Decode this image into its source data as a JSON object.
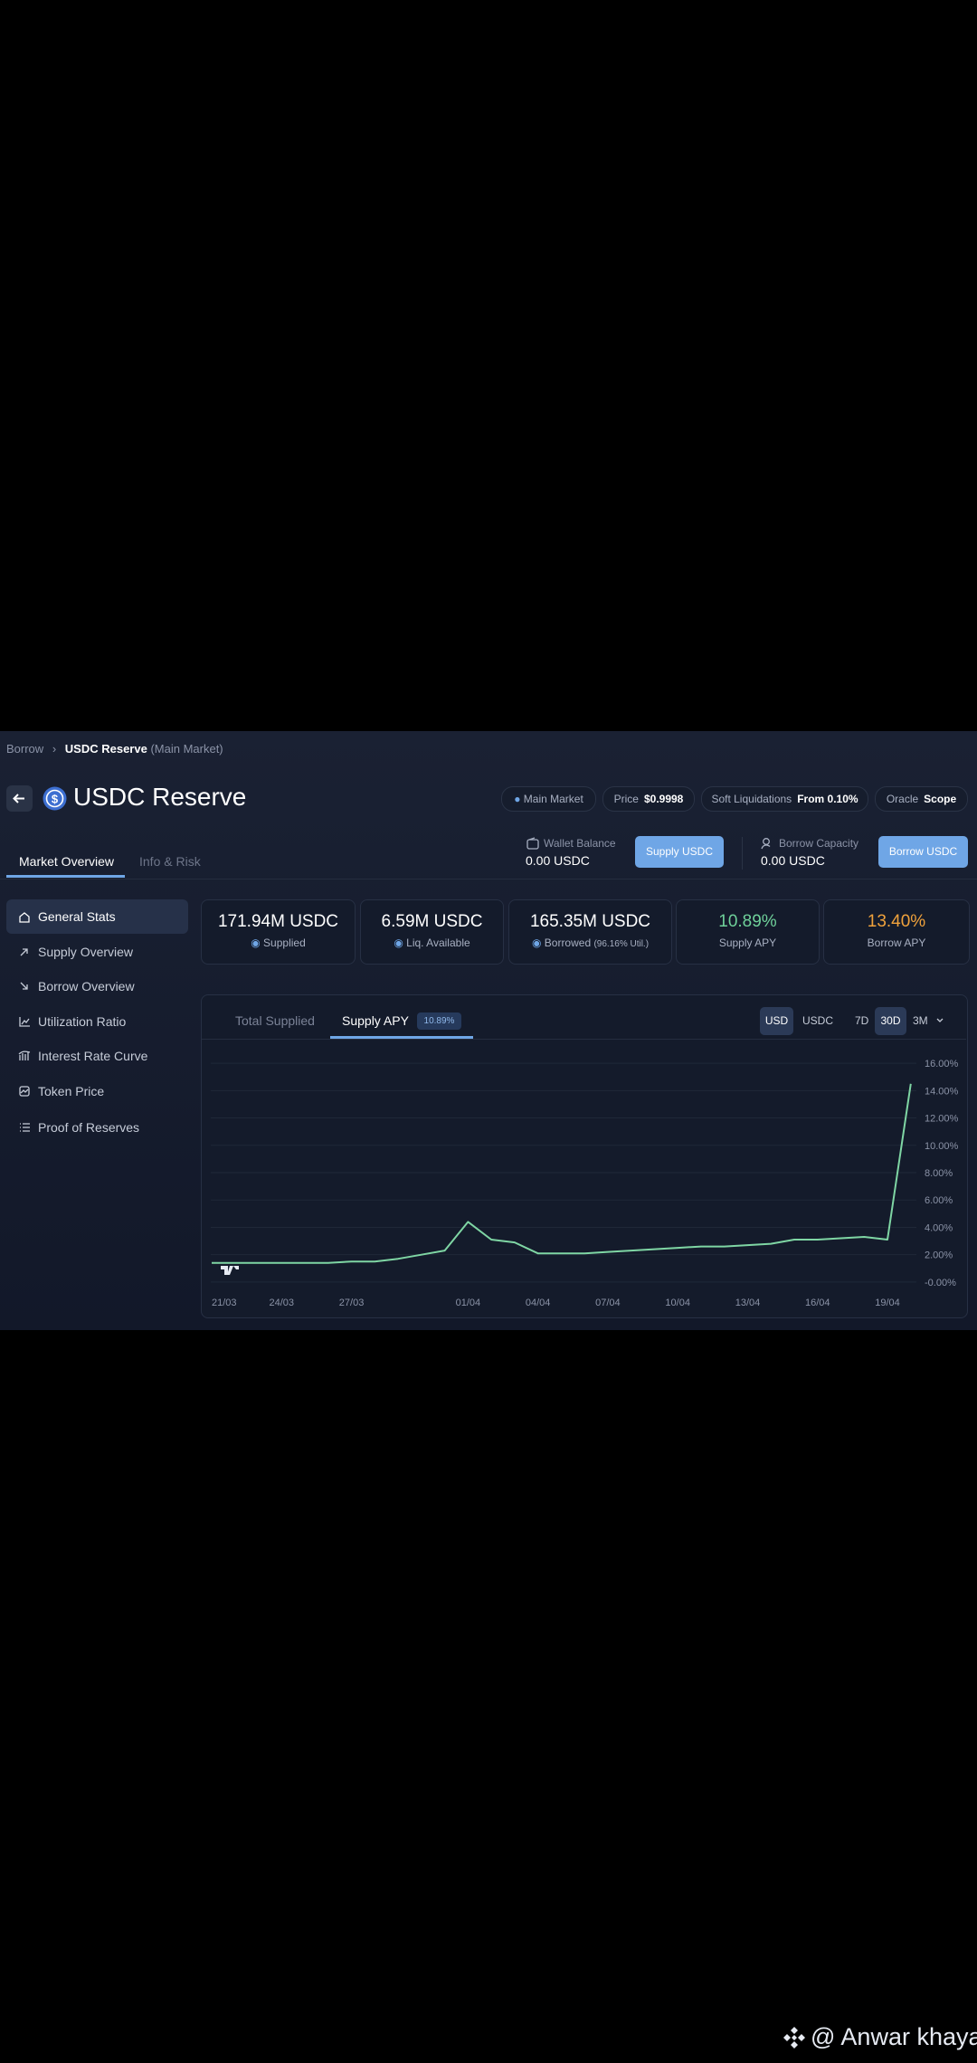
{
  "breadcrumb": {
    "root": "Borrow",
    "current": "USDC Reserve",
    "market": "(Main Market)"
  },
  "header": {
    "title": "USDC Reserve",
    "pills": [
      {
        "label": "Main Market"
      },
      {
        "label": "Price",
        "value": "$0.9998"
      },
      {
        "label": "Soft Liquidations",
        "value": "From 0.10%"
      },
      {
        "label": "Oracle",
        "value": "Scope"
      }
    ]
  },
  "tabs": [
    "Market Overview",
    "Info & Risk"
  ],
  "wallet": {
    "label": "Wallet Balance",
    "value": "0.00 USDC",
    "button": "Supply USDC"
  },
  "borrow": {
    "label": "Borrow Capacity",
    "value": "0.00 USDC",
    "button": "Borrow USDC"
  },
  "sidebar": [
    "General Stats",
    "Supply Overview",
    "Borrow Overview",
    "Utilization Ratio",
    "Interest Rate Curve",
    "Token Price",
    "Proof of Reserves"
  ],
  "stats": [
    {
      "value": "171.94M USDC",
      "label": "Supplied"
    },
    {
      "value": "6.59M USDC",
      "label": "Liq. Available"
    },
    {
      "value": "165.35M USDC",
      "label": "Borrowed",
      "note": "(96.16% Util.)"
    },
    {
      "value": "10.89%",
      "label": "Supply APY"
    },
    {
      "value": "13.40%",
      "label": "Borrow APY"
    }
  ],
  "chart_tabs": {
    "items": [
      "Total Supplied",
      "Supply APY"
    ],
    "badge": "10.89%"
  },
  "chart_controls": {
    "units": [
      "USD",
      "USDC"
    ],
    "ranges": [
      "7D",
      "30D",
      "3M"
    ]
  },
  "chart_data": {
    "type": "line",
    "x": [
      "21/03",
      null,
      null,
      "24/03",
      null,
      null,
      "27/03",
      null,
      null,
      null,
      null,
      "01/04",
      null,
      null,
      "04/04",
      null,
      null,
      "07/04",
      null,
      null,
      "10/04",
      null,
      null,
      "13/04",
      null,
      null,
      "16/04",
      null,
      null,
      "19/04",
      null
    ],
    "values": [
      1.4,
      1.4,
      1.4,
      1.4,
      1.4,
      1.4,
      1.5,
      1.5,
      1.7,
      2.0,
      2.3,
      4.4,
      3.1,
      2.9,
      2.1,
      2.1,
      2.1,
      2.2,
      2.3,
      2.4,
      2.5,
      2.6,
      2.6,
      2.7,
      2.8,
      3.1,
      3.1,
      3.2,
      3.3,
      3.1,
      14.5
    ],
    "color": "#7fd6a4",
    "ylim": [
      -1,
      16.8
    ],
    "yticks": [
      {
        "value": 0,
        "label": "-0.00%"
      },
      {
        "value": 2,
        "label": "2.00%"
      },
      {
        "value": 4,
        "label": "4.00%"
      },
      {
        "value": 6,
        "label": "6.00%"
      },
      {
        "value": 8,
        "label": "8.00%"
      },
      {
        "value": 10,
        "label": "10.00%"
      },
      {
        "value": 12,
        "label": "12.00%"
      },
      {
        "value": 14,
        "label": "14.00%"
      },
      {
        "value": 16,
        "label": "16.00%"
      }
    ],
    "grid": true
  },
  "watermark": "@ Anwar khayal"
}
